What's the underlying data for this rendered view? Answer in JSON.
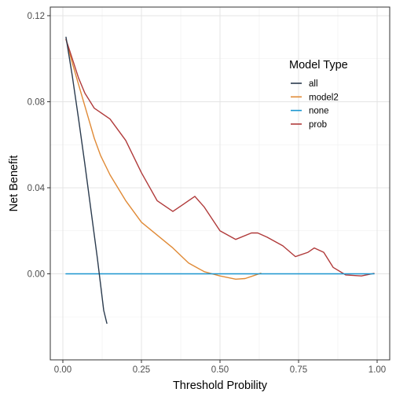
{
  "chart_data": {
    "type": "line",
    "title": "",
    "xlabel": "Threshold Probility",
    "ylabel": "Net Benefit",
    "xlim": [
      -0.04,
      1.04
    ],
    "ylim": [
      -0.04,
      0.124
    ],
    "x_ticks": [
      0.0,
      0.25,
      0.5,
      0.75,
      1.0
    ],
    "x_tick_labels": [
      "0.00",
      "0.25",
      "0.50",
      "0.75",
      "1.00"
    ],
    "y_ticks": [
      0.0,
      0.04,
      0.08,
      0.12
    ],
    "y_tick_labels": [
      "0.00",
      "0.04",
      "0.08",
      "0.12"
    ],
    "grid": true,
    "legend": {
      "title": "Model Type",
      "placement": "top-right"
    },
    "series": [
      {
        "name": "all",
        "color": "#2b3b4e",
        "x": [
          0.01,
          0.03,
          0.05,
          0.07,
          0.09,
          0.11,
          0.13,
          0.14
        ],
        "y": [
          0.11,
          0.092,
          0.072,
          0.051,
          0.029,
          0.007,
          -0.017,
          -0.023
        ]
      },
      {
        "name": "model2",
        "color": "#e08a36",
        "x": [
          0.01,
          0.03,
          0.05,
          0.08,
          0.1,
          0.12,
          0.15,
          0.2,
          0.25,
          0.3,
          0.35,
          0.4,
          0.45,
          0.5,
          0.55,
          0.58,
          0.6,
          0.63
        ],
        "y": [
          0.109,
          0.098,
          0.088,
          0.073,
          0.063,
          0.055,
          0.046,
          0.034,
          0.024,
          0.018,
          0.012,
          0.005,
          0.001,
          -0.001,
          -0.0025,
          -0.0022,
          -0.0012,
          0.0003
        ]
      },
      {
        "name": "none",
        "color": "#1a96cf",
        "x": [
          0.01,
          0.99
        ],
        "y": [
          0.0,
          0.0
        ]
      },
      {
        "name": "prob",
        "color": "#b03a3a",
        "x": [
          0.01,
          0.03,
          0.05,
          0.07,
          0.1,
          0.15,
          0.2,
          0.25,
          0.3,
          0.35,
          0.38,
          0.42,
          0.45,
          0.5,
          0.55,
          0.6,
          0.62,
          0.65,
          0.7,
          0.74,
          0.78,
          0.8,
          0.83,
          0.86,
          0.9,
          0.95,
          0.99
        ],
        "y": [
          0.109,
          0.1,
          0.091,
          0.084,
          0.077,
          0.072,
          0.062,
          0.047,
          0.034,
          0.029,
          0.032,
          0.036,
          0.031,
          0.02,
          0.016,
          0.019,
          0.019,
          0.017,
          0.013,
          0.008,
          0.01,
          0.012,
          0.01,
          0.003,
          -0.0005,
          -0.001,
          0.0002
        ]
      }
    ]
  }
}
